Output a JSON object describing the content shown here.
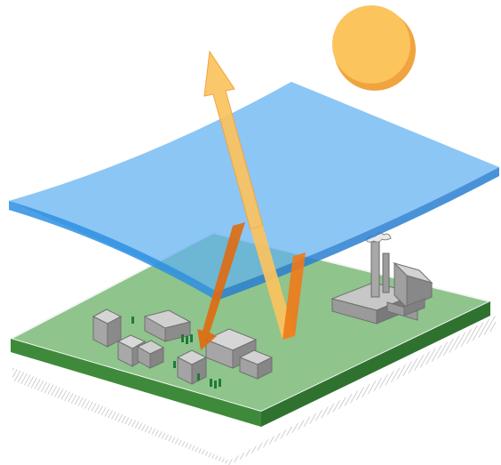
{
  "colors": {
    "background": "#ffffff",
    "sun": "#fcc45c",
    "sun_shadow": "#f0a440",
    "atmosphere_layer": "#5fb0f0",
    "atmosphere_edge": "#2e8fe0",
    "ground_top": "#8fc48c",
    "ground_side_front": "#3e8a3a",
    "ground_side_right": "#2f7230",
    "ground_shadow": "#cfcfcf",
    "incoming_arrow": "#fbc25e",
    "reflected_arrow": "#e06a10",
    "buildings": "#a4a4a4",
    "trees": "#1f7a3a"
  },
  "scene": {
    "elements": [
      "sun",
      "atmosphere-layer",
      "earth-surface",
      "incoming-radiation-arrow",
      "reflected-radiation-arrows",
      "town-buildings",
      "factory"
    ]
  }
}
